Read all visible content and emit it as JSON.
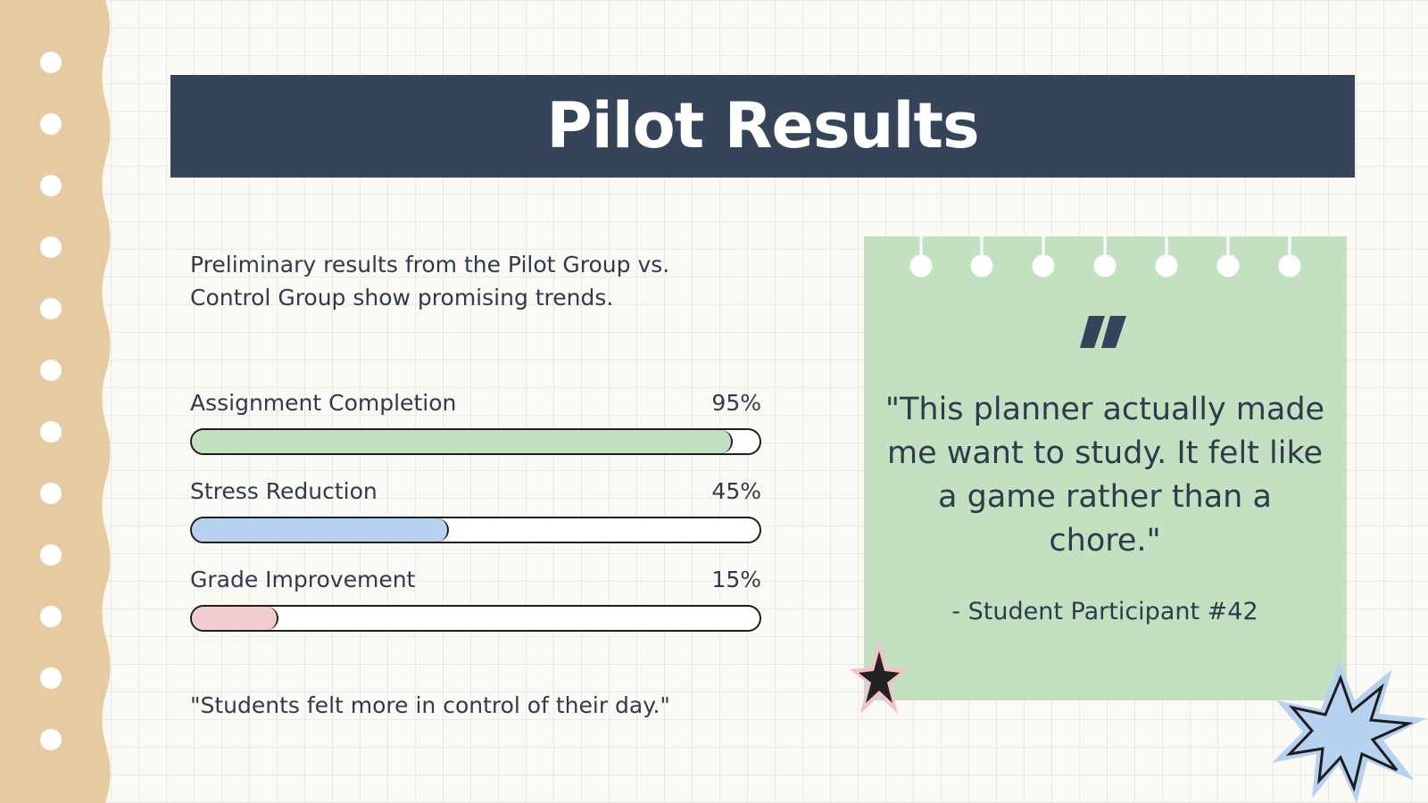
{
  "header": {
    "title": "Pilot Results"
  },
  "intro": "Preliminary results from the Pilot Group vs. Control Group show promising trends.",
  "metrics": [
    {
      "label": "Assignment Completion",
      "value": 95,
      "value_label": "95%",
      "color": "#c3e0c1"
    },
    {
      "label": "Stress Reduction",
      "value": 45,
      "value_label": "45%",
      "color": "#b7d2f0"
    },
    {
      "label": "Grade Improvement",
      "value": 15,
      "value_label": "15%",
      "color": "#f3ccd0"
    }
  ],
  "note": "\"Students felt more in control of their day.\"",
  "testimonial": {
    "quote": "\"This planner actually made me want to study. It felt like a game rather than a chore.\"",
    "author": "- Student Participant #42"
  }
}
